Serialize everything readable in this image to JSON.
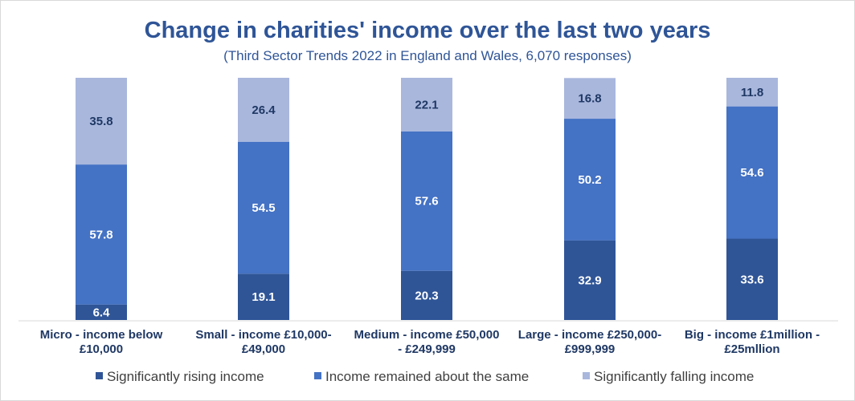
{
  "chart_data": {
    "type": "bar",
    "stacked": true,
    "title": "Change in charities' income over the last two years",
    "subtitle": "(Third Sector Trends 2022 in England and Wales, 6,070 responses)",
    "categories": [
      [
        "Micro - income below",
        "£10,000"
      ],
      [
        "Small - income £10,000-",
        "£49,000"
      ],
      [
        "Medium - income £50,000",
        "- £249,999"
      ],
      [
        "Large - income £250,000-",
        "£999,999"
      ],
      [
        "Big - income £1million -",
        "£25mllion"
      ]
    ],
    "series": [
      {
        "name": "Significantly rising income",
        "color": "#2f5597",
        "label_color": "#ffffff",
        "values": [
          6.4,
          19.1,
          20.3,
          32.9,
          33.6
        ]
      },
      {
        "name": "Income remained about the same",
        "color": "#4472c4",
        "label_color": "#ffffff",
        "values": [
          57.8,
          54.5,
          57.6,
          50.2,
          54.6
        ]
      },
      {
        "name": "Significantly falling income",
        "color": "#a9b7dd",
        "label_color": "#1f3864",
        "values": [
          35.8,
          26.4,
          22.1,
          16.8,
          11.8
        ]
      }
    ],
    "ylim": [
      0,
      100
    ],
    "grid": false,
    "legend_position": "bottom"
  }
}
